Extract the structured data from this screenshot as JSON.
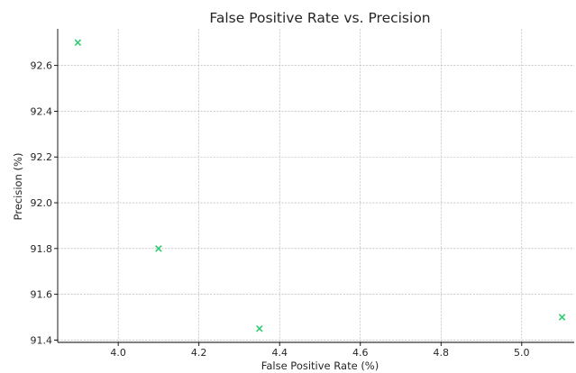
{
  "chart_data": {
    "type": "scatter",
    "title": "False Positive Rate vs. Precision",
    "xlabel": "False Positive Rate (%)",
    "ylabel": "Precision (%)",
    "xlim": [
      3.85,
      5.13
    ],
    "ylim": [
      91.39,
      92.76
    ],
    "xticks": [
      4.0,
      4.2,
      4.4,
      4.6,
      4.8,
      5.0
    ],
    "xtick_labels": [
      "4.0",
      "4.2",
      "4.4",
      "4.6",
      "4.8",
      "5.0"
    ],
    "yticks": [
      91.4,
      91.6,
      91.8,
      92.0,
      92.2,
      92.4,
      92.6
    ],
    "ytick_labels": [
      "91.4",
      "91.6",
      "91.8",
      "92.0",
      "92.2",
      "92.4",
      "92.6"
    ],
    "grid": true,
    "marker": "x",
    "marker_color": "#2ecc71",
    "points": [
      {
        "x": 3.9,
        "y": 92.7
      },
      {
        "x": 4.1,
        "y": 91.8
      },
      {
        "x": 4.35,
        "y": 91.45
      },
      {
        "x": 5.1,
        "y": 91.5
      }
    ]
  }
}
